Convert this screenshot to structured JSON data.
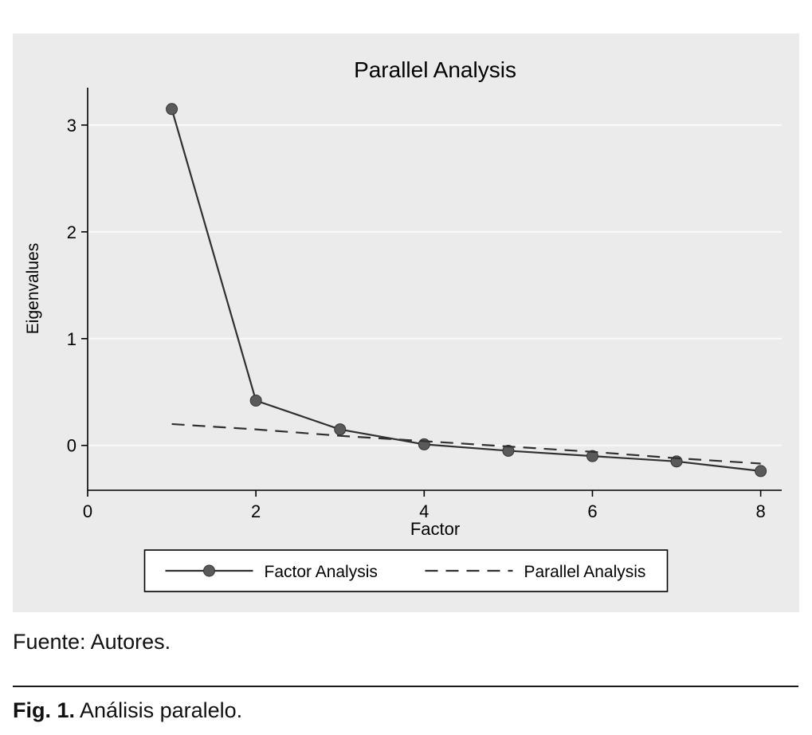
{
  "caption": {
    "source": "Fuente: Autores.",
    "fig_label": "Fig. 1.",
    "fig_text": " Análisis paralelo."
  },
  "chart_data": {
    "type": "line",
    "title": "Parallel Analysis",
    "xlabel": "Factor",
    "ylabel": "Eigenvalues",
    "xlim": [
      0,
      8.25
    ],
    "ylim": [
      -0.42,
      3.35
    ],
    "xticks": [
      0,
      2,
      4,
      6,
      8
    ],
    "yticks": [
      0,
      1,
      2,
      3
    ],
    "grid": "horizontal",
    "legend_position": "bottom",
    "series": [
      {
        "name": "Factor Analysis",
        "style": "solid",
        "marker": "circle",
        "x": [
          1,
          2,
          3,
          4,
          5,
          6,
          7,
          8
        ],
        "values": [
          3.15,
          0.42,
          0.15,
          0.01,
          -0.05,
          -0.1,
          -0.15,
          -0.24
        ]
      },
      {
        "name": "Parallel Analysis",
        "style": "dashed",
        "marker": "none",
        "x": [
          1,
          2,
          3,
          4,
          5,
          6,
          7,
          8
        ],
        "values": [
          0.2,
          0.15,
          0.09,
          0.04,
          -0.01,
          -0.06,
          -0.12,
          -0.17
        ]
      }
    ],
    "colors": {
      "line": "#303030",
      "marker": "#5a5a5a",
      "plot_bg": "#ebebeb",
      "grid": "#fafafa"
    }
  }
}
